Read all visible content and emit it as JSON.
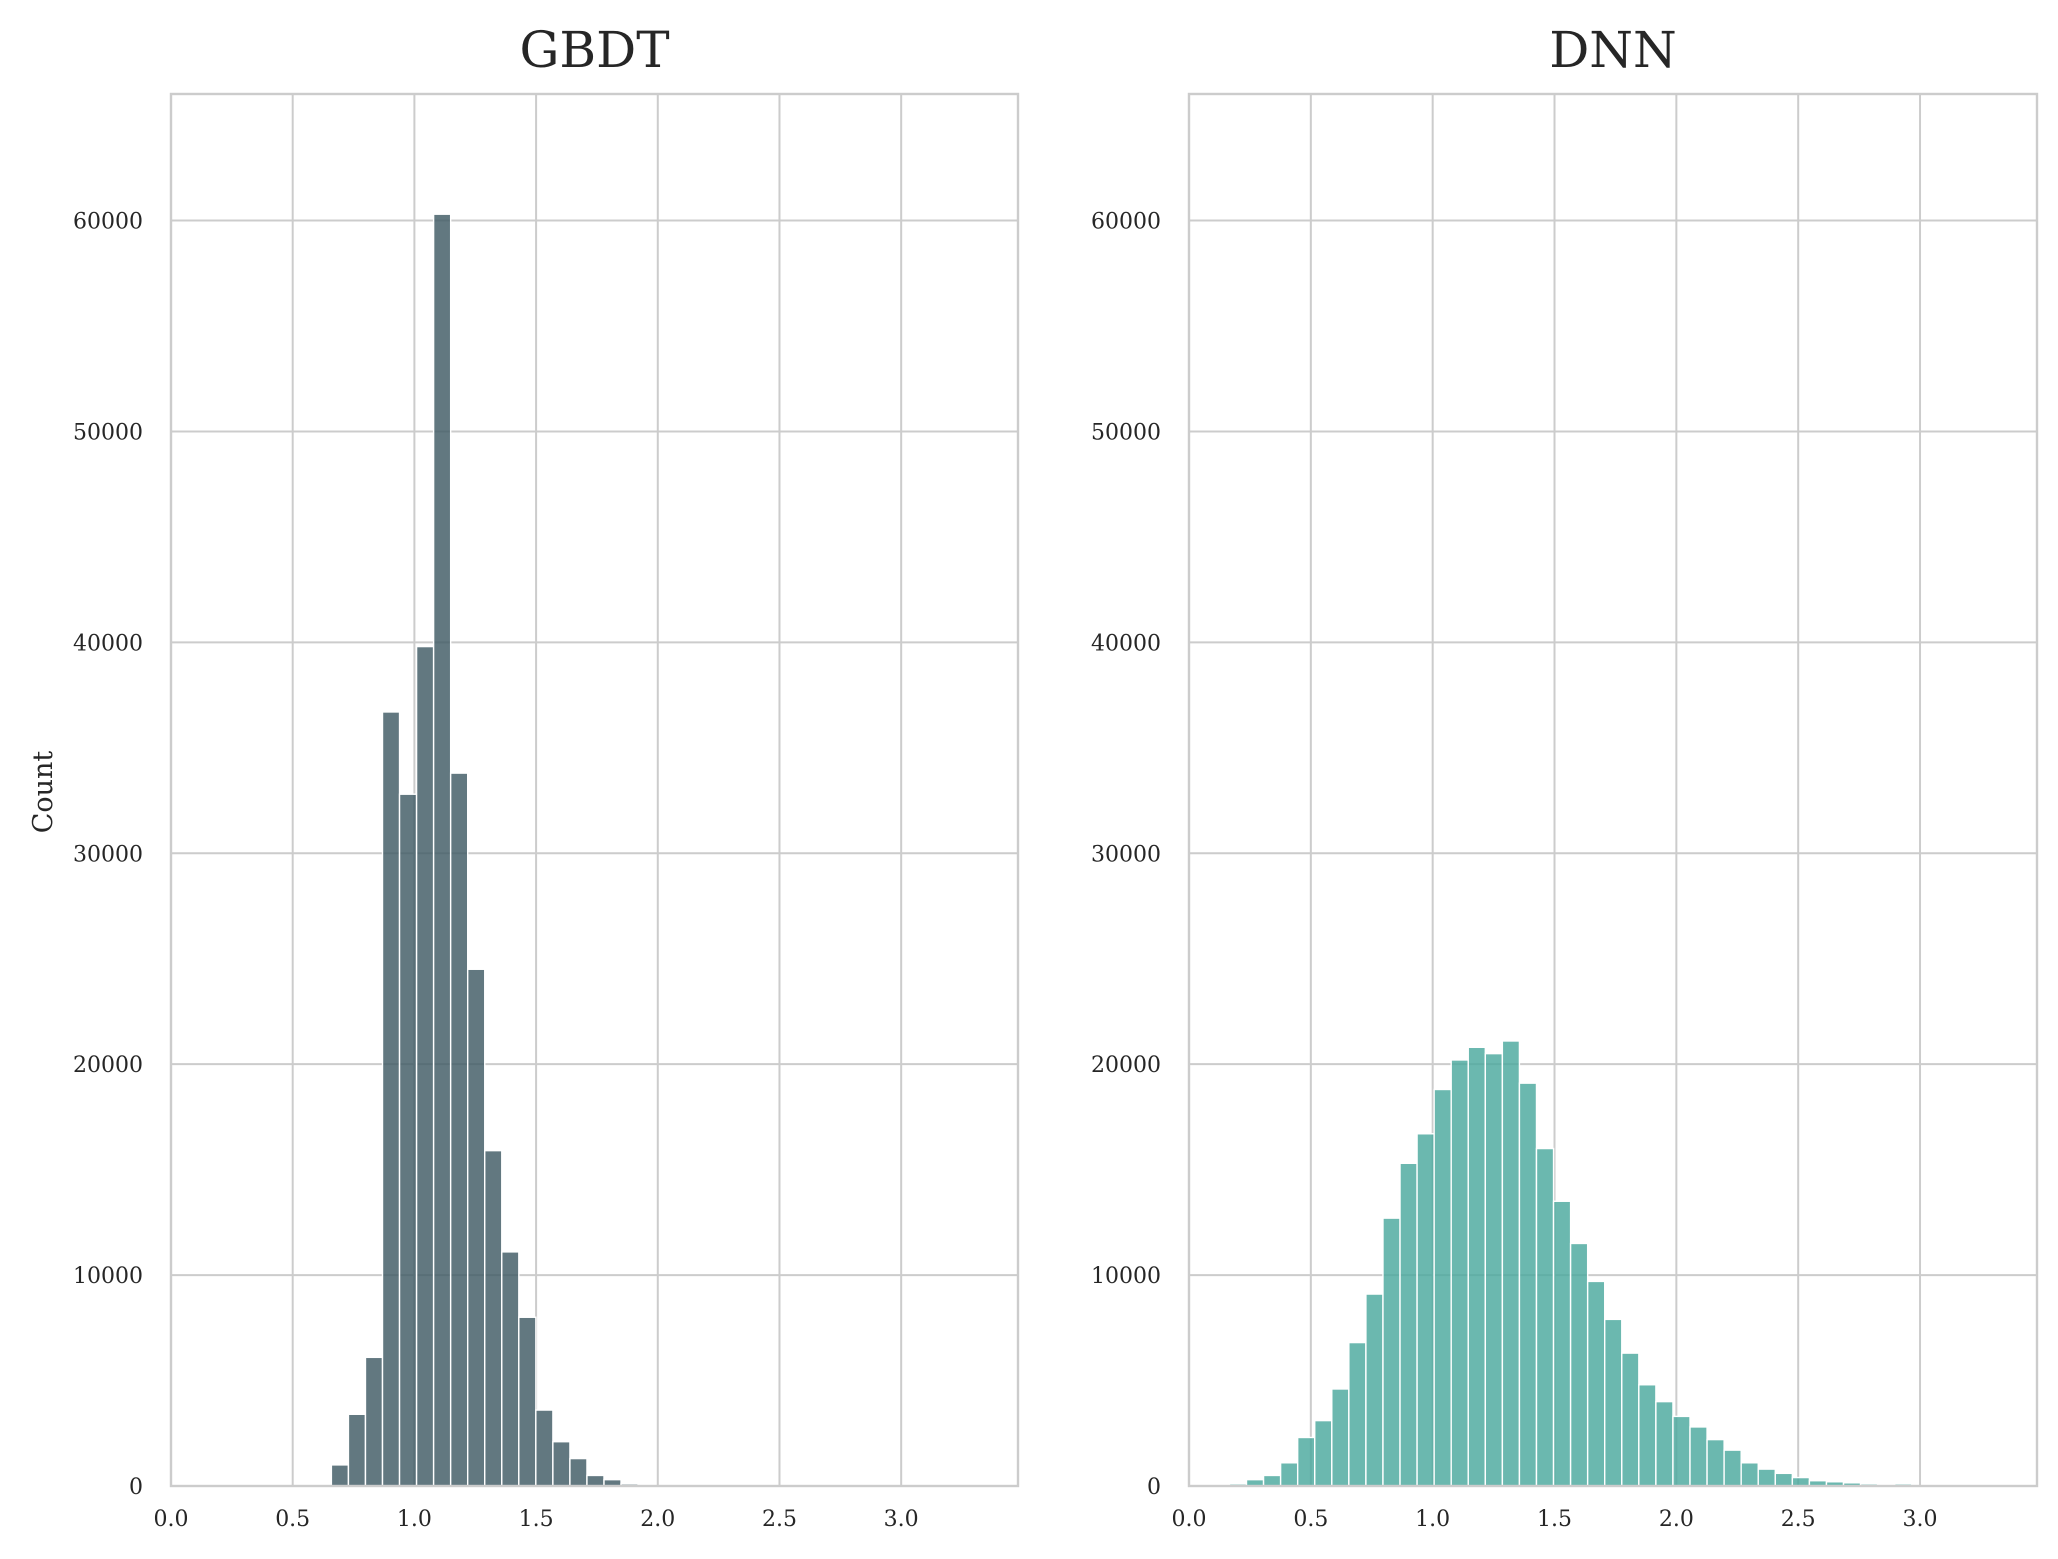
{
  "chart_data": [
    {
      "type": "bar",
      "title": "GBDT",
      "xlabel": "",
      "ylabel": "Count",
      "xlim": [
        0.0,
        3.48
      ],
      "ylim": [
        0,
        66000
      ],
      "xticks": [
        0.0,
        0.5,
        1.0,
        1.5,
        2.0,
        2.5,
        3.0
      ],
      "xtick_labels": [
        "0.0",
        "0.5",
        "1.0",
        "1.5",
        "2.0",
        "2.5",
        "3.0"
      ],
      "yticks": [
        0,
        10000,
        20000,
        30000,
        40000,
        50000,
        60000
      ],
      "ytick_labels": [
        "0",
        "10000",
        "20000",
        "30000",
        "40000",
        "50000",
        "60000"
      ],
      "grid": true,
      "color": "#3f5a64",
      "bin_edges": [
        0.659,
        0.729,
        0.799,
        0.869,
        0.939,
        1.009,
        1.079,
        1.149,
        1.219,
        1.289,
        1.359,
        1.429,
        1.499,
        1.569,
        1.639,
        1.709,
        1.779,
        1.849,
        1.919
      ],
      "values": [
        1000,
        3400,
        6100,
        36700,
        32800,
        39800,
        60300,
        33800,
        24500,
        15900,
        11100,
        8000,
        3600,
        2100,
        1300,
        500,
        300,
        100
      ]
    },
    {
      "type": "bar",
      "title": "DNN",
      "xlabel": "",
      "ylabel": "",
      "xlim": [
        0.0,
        3.48
      ],
      "ylim": [
        0,
        66000
      ],
      "xticks": [
        0.0,
        0.5,
        1.0,
        1.5,
        2.0,
        2.5,
        3.0
      ],
      "xtick_labels": [
        "0.0",
        "0.5",
        "1.0",
        "1.5",
        "2.0",
        "2.5",
        "3.0"
      ],
      "yticks": [
        0,
        10000,
        20000,
        30000,
        40000,
        50000,
        60000
      ],
      "ytick_labels": [
        "0",
        "10000",
        "20000",
        "30000",
        "40000",
        "50000",
        "60000"
      ],
      "grid": true,
      "color": "#4aa89d",
      "bin_edges": [
        0.166,
        0.236,
        0.306,
        0.376,
        0.446,
        0.516,
        0.586,
        0.656,
        0.726,
        0.796,
        0.866,
        0.936,
        1.006,
        1.076,
        1.146,
        1.216,
        1.286,
        1.356,
        1.426,
        1.496,
        1.566,
        1.636,
        1.706,
        1.776,
        1.846,
        1.916,
        1.986,
        2.056,
        2.126,
        2.196,
        2.266,
        2.336,
        2.406,
        2.476,
        2.546,
        2.616,
        2.686,
        2.756,
        2.826,
        2.896,
        2.966
      ],
      "values": [
        100,
        300,
        500,
        1100,
        2300,
        3100,
        4600,
        6800,
        9100,
        12700,
        15300,
        16700,
        18800,
        20200,
        20800,
        20500,
        21100,
        19100,
        16000,
        13500,
        11500,
        9700,
        7900,
        6300,
        4800,
        4000,
        3300,
        2800,
        2200,
        1700,
        1100,
        800,
        600,
        400,
        250,
        200,
        150,
        100,
        60,
        100
      ]
    }
  ]
}
